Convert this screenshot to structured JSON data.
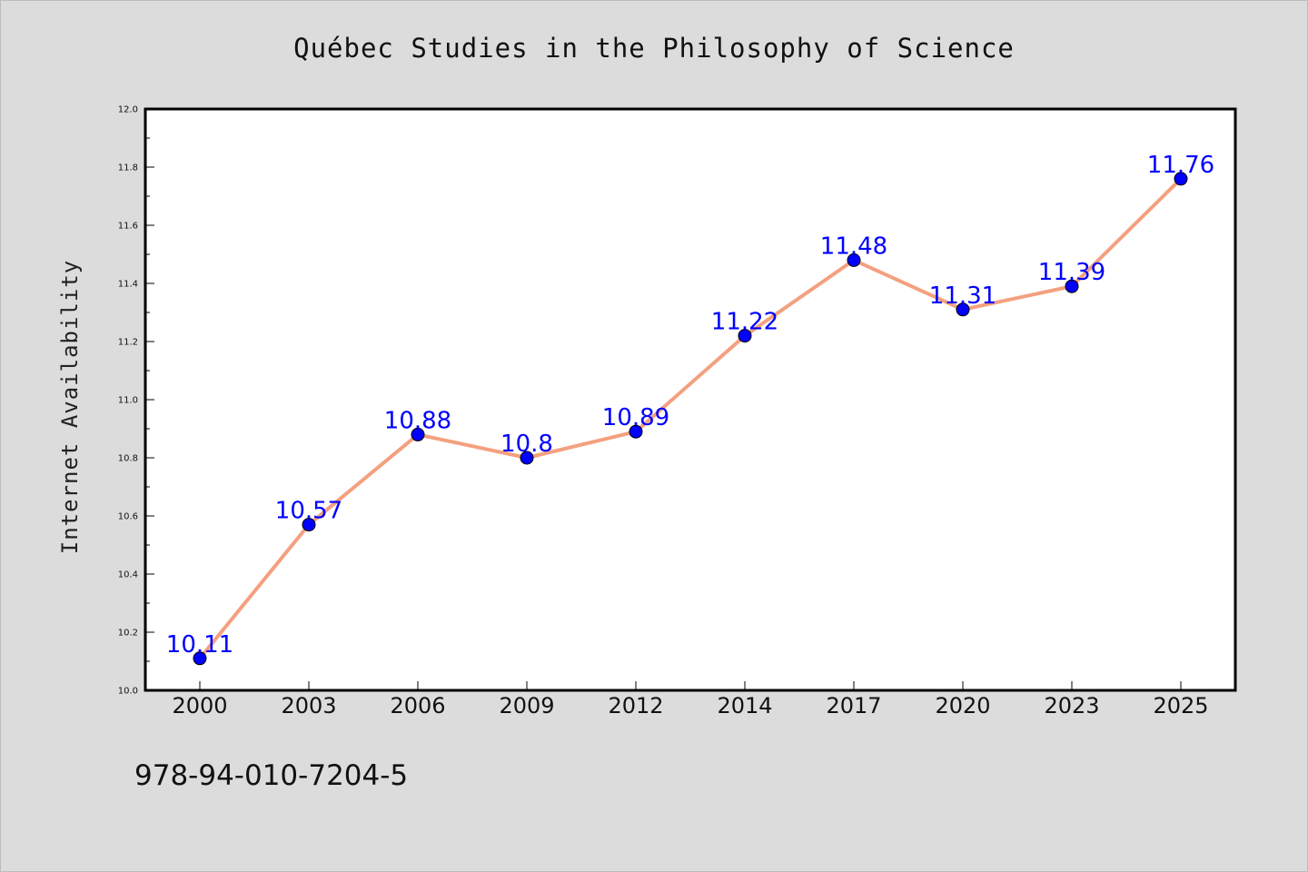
{
  "footer": {
    "code": "978-94-010-7204-5"
  },
  "colors": {
    "background": "#dcdcdc",
    "plot_background": "#ffffff",
    "line": "#f4a07f",
    "marker": "#0000ff",
    "data_label": "#0000ff"
  },
  "chart_data": {
    "type": "line",
    "title": "Québec Studies in the Philosophy of Science",
    "xlabel": "",
    "ylabel": "Internet Availability",
    "categories": [
      "2000",
      "2003",
      "2006",
      "2009",
      "2012",
      "2014",
      "2017",
      "2020",
      "2023",
      "2025"
    ],
    "series": [
      {
        "values": [
          10.11,
          10.57,
          10.88,
          10.8,
          10.89,
          11.22,
          11.48,
          11.31,
          11.39,
          11.76
        ],
        "data_labels": [
          "10.11",
          "10.57",
          "10.88",
          "10.8",
          "10.89",
          "11.22",
          "11.48",
          "11.31",
          "11.39",
          "11.76"
        ]
      }
    ],
    "ylim": [
      10.0,
      12.0
    ],
    "yticks": [
      10.0,
      10.2,
      10.4,
      10.6,
      10.8,
      11.0,
      11.2,
      11.4,
      11.6,
      11.8,
      12.0
    ],
    "ytick_labels": [
      "10.0",
      "10.2",
      "10.4",
      "10.6",
      "10.8",
      "11.0",
      "11.2",
      "11.4",
      "11.6",
      "11.8",
      "12.0"
    ],
    "grid": false,
    "legend": "none",
    "markers": "circle"
  }
}
